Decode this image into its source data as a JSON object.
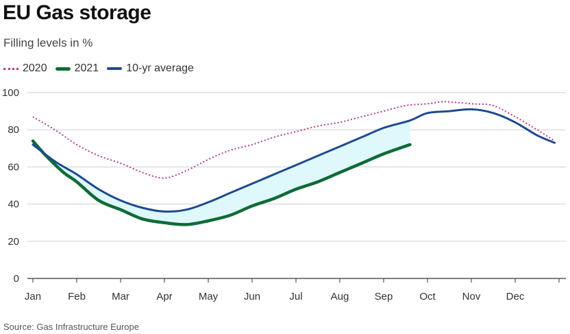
{
  "header": {
    "title": "EU Gas storage",
    "subtitle": "Filling levels in %"
  },
  "legend": {
    "items": [
      {
        "label": "2020",
        "style": "dotted",
        "color": "#b03b8c"
      },
      {
        "label": "2021",
        "style": "thick",
        "color": "#0f6b35"
      },
      {
        "label": "10-yr average",
        "style": "solid",
        "color": "#1d4a8f"
      }
    ]
  },
  "footer": {
    "source": "Source: Gas Infrastructure Europe"
  },
  "chart_data": {
    "type": "line",
    "title": "EU Gas storage",
    "subtitle": "Filling levels in %",
    "xlabel": "",
    "ylabel": "",
    "xlim": [
      0,
      12
    ],
    "ylim": [
      0,
      100
    ],
    "x_unit_note": "month",
    "x_ticks": [
      "Jan",
      "Feb",
      "Mar",
      "Apr",
      "May",
      "Jun",
      "Jul",
      "Aug",
      "Sep",
      "Oct",
      "Nov",
      "Dec"
    ],
    "y_ticks": [
      0,
      20,
      40,
      60,
      80,
      100
    ],
    "grid": {
      "horizontal": true,
      "vertical": false
    },
    "legend_position": "top-left",
    "shaded_region": {
      "between": [
        "10-yr average",
        "2021"
      ],
      "color": "#dff8fb",
      "x_range": [
        0,
        8.6
      ]
    },
    "series": [
      {
        "name": "2020",
        "color": "#b03b8c",
        "style": "dotted",
        "x": [
          0,
          0.5,
          1,
          1.5,
          2,
          2.5,
          3,
          3.5,
          4,
          4.5,
          5,
          5.5,
          6,
          6.5,
          7,
          7.5,
          8,
          8.5,
          9,
          9.3,
          9.5,
          10,
          10.5,
          11,
          11.5,
          11.9
        ],
        "values": [
          87,
          80,
          72,
          66,
          62,
          57,
          54,
          58,
          64,
          69,
          72,
          76,
          79,
          82,
          84,
          87,
          90,
          93,
          94,
          95,
          95,
          94,
          93,
          87,
          80,
          74
        ]
      },
      {
        "name": "2021",
        "color": "#0f6b35",
        "style": "thick",
        "x": [
          0,
          0.3,
          0.7,
          1,
          1.5,
          2,
          2.5,
          3,
          3.5,
          4,
          4.5,
          5,
          5.5,
          6,
          6.5,
          7,
          7.5,
          8,
          8.6
        ],
        "values": [
          74,
          66,
          57,
          52,
          42,
          37,
          32,
          30,
          29,
          31,
          34,
          39,
          43,
          48,
          52,
          57,
          62,
          67,
          72
        ]
      },
      {
        "name": "10-yr average",
        "color": "#1d4a8f",
        "style": "solid",
        "x": [
          0,
          0.5,
          1,
          1.5,
          2,
          2.5,
          3,
          3.5,
          4,
          4.5,
          5,
          5.5,
          6,
          6.5,
          7,
          7.5,
          8,
          8.6,
          9,
          9.5,
          10,
          10.5,
          11,
          11.5,
          11.9
        ],
        "values": [
          72,
          63,
          56,
          48,
          42,
          38,
          36,
          37,
          41,
          46,
          51,
          56,
          61,
          66,
          71,
          76,
          81,
          85,
          89,
          90,
          91,
          89,
          84,
          77,
          73
        ]
      }
    ]
  }
}
